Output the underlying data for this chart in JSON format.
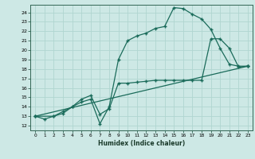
{
  "xlabel": "Humidex (Indice chaleur)",
  "bg_color": "#cde8e5",
  "grid_color": "#b0d5d0",
  "line_color": "#1a6b5a",
  "xlim": [
    -0.5,
    23.5
  ],
  "ylim": [
    11.5,
    24.8
  ],
  "xticks": [
    0,
    1,
    2,
    3,
    4,
    5,
    6,
    7,
    8,
    9,
    10,
    11,
    12,
    13,
    14,
    15,
    16,
    17,
    18,
    19,
    20,
    21,
    22,
    23
  ],
  "yticks": [
    12,
    13,
    14,
    15,
    16,
    17,
    18,
    19,
    20,
    21,
    22,
    23,
    24
  ],
  "line1_x": [
    0,
    1,
    2,
    3,
    4,
    5,
    6,
    7,
    8,
    9,
    10,
    11,
    12,
    13,
    14,
    15,
    16,
    17,
    18,
    19,
    20,
    21,
    22,
    23
  ],
  "line1_y": [
    13,
    12.7,
    13,
    13.3,
    14,
    14.5,
    14.8,
    12.2,
    14,
    19,
    21,
    21.5,
    21.8,
    22.3,
    22.5,
    24.5,
    24.4,
    23.8,
    23.3,
    22.2,
    20.2,
    18.5,
    18.3,
    18.3
  ],
  "line2_x": [
    0,
    2,
    3,
    4,
    5,
    6,
    7,
    8,
    9,
    10,
    11,
    12,
    13,
    14,
    15,
    16,
    17,
    18,
    19,
    20,
    21,
    22,
    23
  ],
  "line2_y": [
    13,
    13,
    13.5,
    14,
    14.8,
    15.2,
    13.2,
    13.8,
    16.5,
    16.5,
    16.6,
    16.7,
    16.8,
    16.8,
    16.8,
    16.8,
    16.8,
    16.8,
    21.2,
    21.2,
    20.2,
    18.2,
    18.3
  ],
  "line3_x": [
    0,
    23
  ],
  "line3_y": [
    13,
    18.3
  ]
}
